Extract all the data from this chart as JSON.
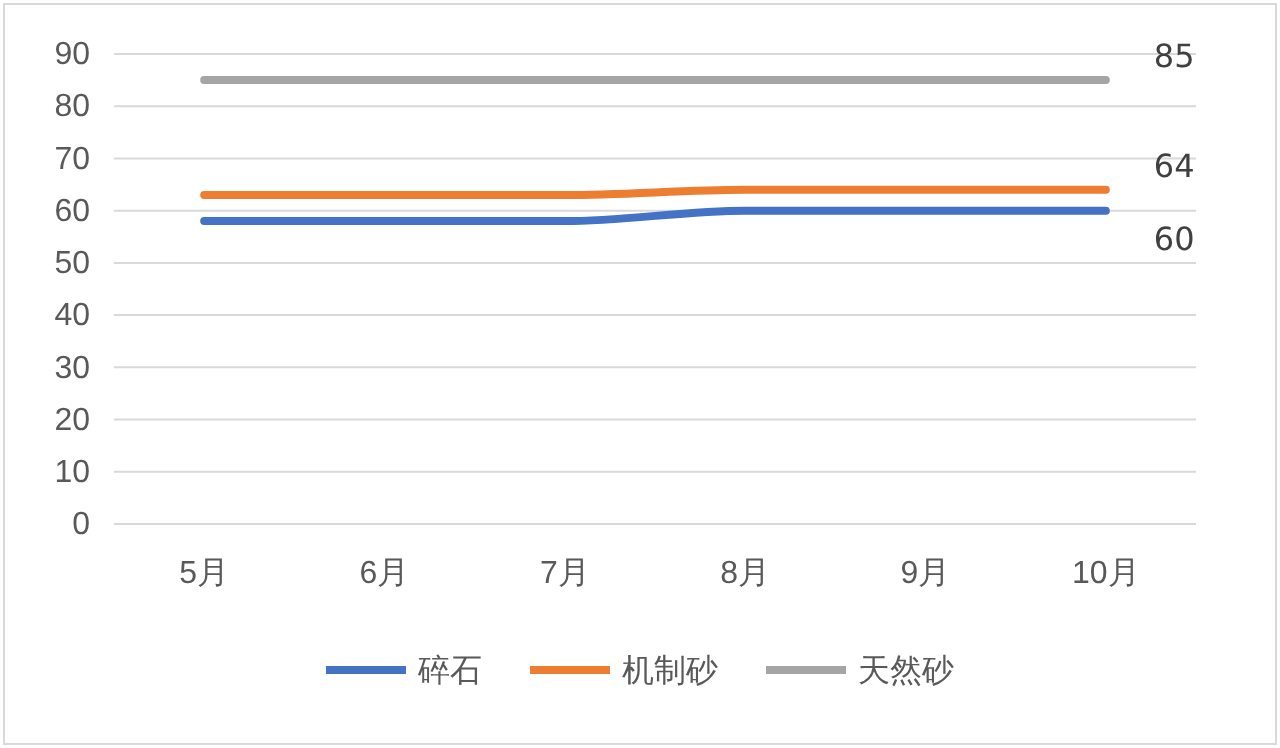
{
  "chart_data": {
    "type": "line",
    "categories": [
      "5月",
      "6月",
      "7月",
      "8月",
      "9月",
      "10月"
    ],
    "series": [
      {
        "name": "碎石",
        "color": "#4472c4",
        "values": [
          58,
          58,
          58,
          60,
          60,
          60
        ],
        "value_labels": [
          null,
          null,
          null,
          null,
          null,
          "60"
        ]
      },
      {
        "name": "机制砂",
        "color": "#ed7d31",
        "values": [
          63,
          63,
          63,
          64,
          64,
          64
        ],
        "value_labels": [
          null,
          null,
          null,
          null,
          null,
          "64"
        ]
      },
      {
        "name": "天然砂",
        "color": "#a5a5a5",
        "values": [
          85,
          85,
          85,
          85,
          85,
          85
        ],
        "value_labels": [
          null,
          null,
          null,
          null,
          null,
          "85"
        ]
      }
    ],
    "ylim": [
      0,
      90
    ],
    "yticks": [
      0,
      10,
      20,
      30,
      40,
      50,
      60,
      70,
      80,
      90
    ],
    "grid": "y",
    "legend": "bottom",
    "marker": "none",
    "line_style": "solid"
  }
}
